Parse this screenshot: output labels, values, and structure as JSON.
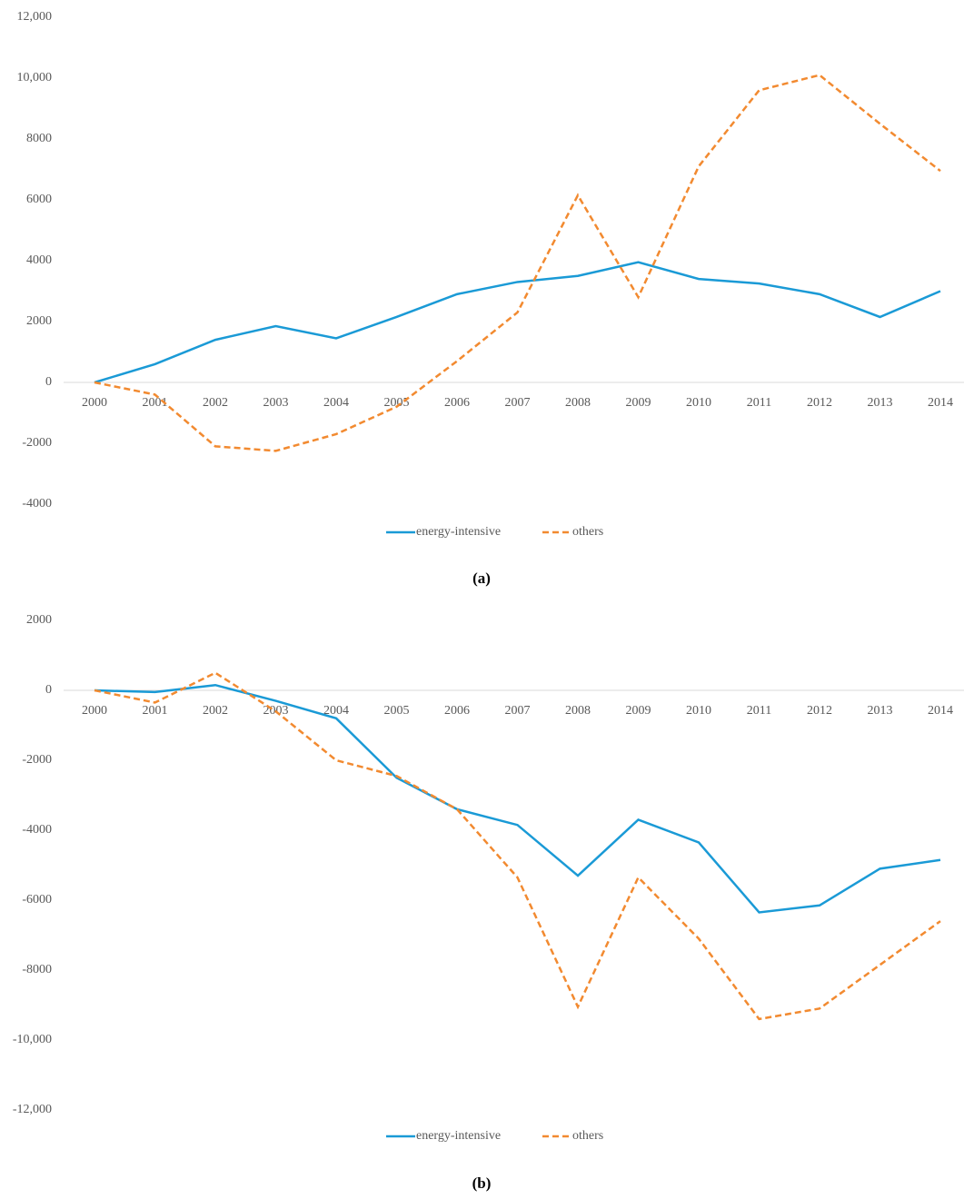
{
  "chart_data": [
    {
      "type": "line",
      "caption": "(a)",
      "categories": [
        "2000",
        "2001",
        "2002",
        "2003",
        "2004",
        "2005",
        "2006",
        "2007",
        "2008",
        "2009",
        "2010",
        "2011",
        "2012",
        "2013",
        "2014"
      ],
      "series": [
        {
          "name": "energy-intensive",
          "color": "#1a9ad6",
          "dash": false,
          "values": [
            0,
            600,
            1400,
            1850,
            1450,
            2150,
            2900,
            3300,
            3500,
            3950,
            3400,
            3250,
            2900,
            2150,
            3000
          ]
        },
        {
          "name": "others",
          "color": "#f28a30",
          "dash": true,
          "values": [
            0,
            -400,
            -2100,
            -2250,
            -1700,
            -800,
            700,
            2300,
            6150,
            2800,
            7100,
            9600,
            10100,
            8500,
            6950
          ]
        }
      ],
      "ylim": [
        -4000,
        12000
      ],
      "yticks": [
        -4000,
        -2000,
        0,
        2000,
        4000,
        6000,
        8000,
        {
          "value": 10000,
          "label": "10,000"
        },
        {
          "value": 12000,
          "label": "12,000"
        }
      ],
      "grid": false,
      "legend": "bottom"
    },
    {
      "type": "line",
      "caption": "(b)",
      "categories": [
        "2000",
        "2001",
        "2002",
        "2003",
        "2004",
        "2005",
        "2006",
        "2007",
        "2008",
        "2009",
        "2010",
        "2011",
        "2012",
        "2013",
        "2014"
      ],
      "series": [
        {
          "name": "energy-intensive",
          "color": "#1a9ad6",
          "dash": false,
          "values": [
            0,
            -50,
            150,
            -300,
            -800,
            -2500,
            -3400,
            -3850,
            -5300,
            -3700,
            -4350,
            -6350,
            -6150,
            -5100,
            -4850
          ]
        },
        {
          "name": "others",
          "color": "#f28a30",
          "dash": true,
          "values": [
            0,
            -350,
            500,
            -600,
            -2000,
            -2450,
            -3400,
            -5350,
            -9050,
            -5350,
            -7100,
            -9400,
            -9100,
            -7850,
            -6600
          ]
        }
      ],
      "ylim": [
        -12000,
        2000
      ],
      "yticks": [
        {
          "value": -12000,
          "label": "-12,000"
        },
        {
          "value": -10000,
          "label": "-10,000"
        },
        -8000,
        -6000,
        -4000,
        -2000,
        0,
        2000
      ],
      "grid": false,
      "legend": "bottom"
    }
  ]
}
